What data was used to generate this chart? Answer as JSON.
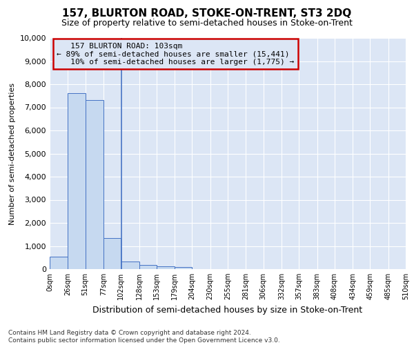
{
  "title": "157, BLURTON ROAD, STOKE-ON-TRENT, ST3 2DQ",
  "subtitle": "Size of property relative to semi-detached houses in Stoke-on-Trent",
  "xlabel": "Distribution of semi-detached houses by size in Stoke-on-Trent",
  "ylabel": "Number of semi-detached properties",
  "footnote": "Contains HM Land Registry data © Crown copyright and database right 2024.\nContains public sector information licensed under the Open Government Licence v3.0.",
  "bin_edges": [
    0,
    26,
    51,
    77,
    102,
    128,
    153,
    179,
    204,
    230,
    255,
    281,
    306,
    332,
    357,
    383,
    408,
    434,
    459,
    485,
    510
  ],
  "bar_heights": [
    550,
    7600,
    7300,
    1350,
    330,
    175,
    130,
    100,
    0,
    0,
    0,
    0,
    0,
    0,
    0,
    0,
    0,
    0,
    0,
    0
  ],
  "bar_color": "#c6d9f0",
  "bar_edge_color": "#4472c4",
  "property_size": 103,
  "property_label": "157 BLURTON ROAD: 103sqm",
  "pct_smaller": 89,
  "num_smaller": "15,441",
  "pct_larger": 10,
  "num_larger": "1,775",
  "vline_color": "#4472c4",
  "annotation_box_color": "#cc0000",
  "ylim": [
    0,
    10000
  ],
  "plot_bg_color": "#dce6f5",
  "fig_bg_color": "#ffffff",
  "grid_color": "#ffffff"
}
